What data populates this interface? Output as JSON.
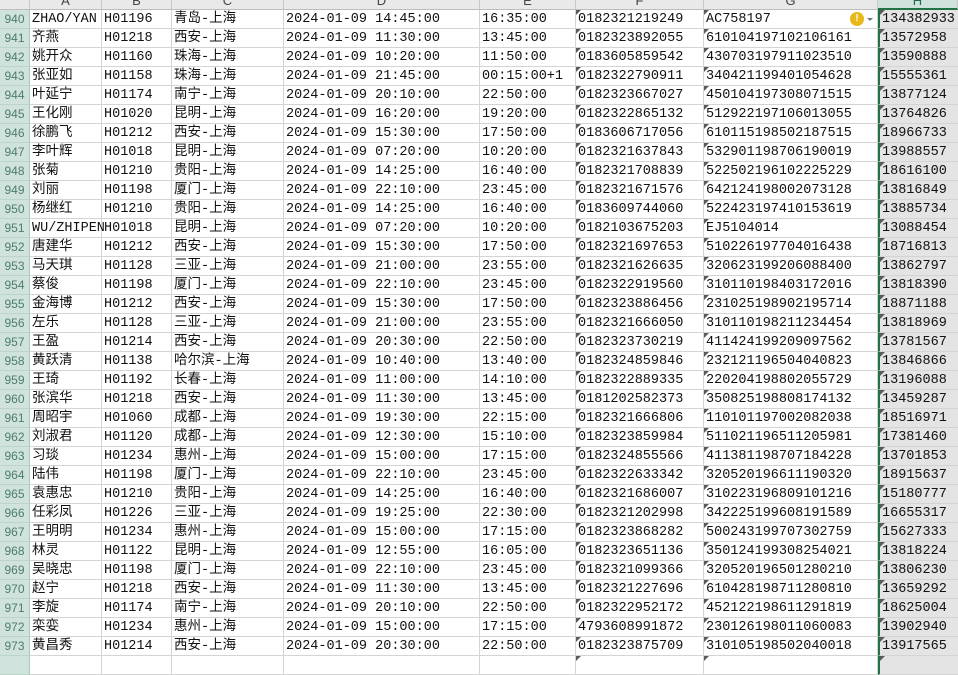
{
  "columns": [
    "A",
    "B",
    "C",
    "D",
    "E",
    "F",
    "G",
    "H"
  ],
  "selected_column": "H",
  "warning_icon": {
    "name": "error-check-icon",
    "color": "#e8b718",
    "glyph": "!"
  },
  "rows": [
    {
      "n": "940",
      "a": "ZHAO/YAN",
      "b": "H01196",
      "c": "青岛-上海",
      "d": "2024-01-09 14:45:00",
      "e": "16:35:00",
      "f": "0182321219249",
      "g": "AC758197",
      "h": "134382933"
    },
    {
      "n": "941",
      "a": "齐燕",
      "b": "H01218",
      "c": "西安-上海",
      "d": "2024-01-09 11:30:00",
      "e": "13:45:00",
      "f": "0182323892055",
      "g": "610104197102106161",
      "h": "13572958"
    },
    {
      "n": "942",
      "a": "姚开众",
      "b": "H01160",
      "c": "珠海-上海",
      "d": "2024-01-09 10:20:00",
      "e": "11:50:00",
      "f": "0183605859542",
      "g": "430703197911023510",
      "h": "13590888"
    },
    {
      "n": "943",
      "a": "张亚如",
      "b": "H01158",
      "c": "珠海-上海",
      "d": "2024-01-09 21:45:00",
      "e": "00:15:00+1",
      "f": "0182322790911",
      "g": "340421199401054628",
      "h": "15555361"
    },
    {
      "n": "944",
      "a": "叶延宁",
      "b": "H01174",
      "c": "南宁-上海",
      "d": "2024-01-09 20:10:00",
      "e": "22:50:00",
      "f": "0182323667027",
      "g": "450104197308071515",
      "h": "13877124"
    },
    {
      "n": "945",
      "a": "王化刚",
      "b": "H01020",
      "c": "昆明-上海",
      "d": "2024-01-09 16:20:00",
      "e": "19:20:00",
      "f": "0182322865132",
      "g": "512922197106013055",
      "h": "13764826"
    },
    {
      "n": "946",
      "a": "徐鹏飞",
      "b": "H01212",
      "c": "西安-上海",
      "d": "2024-01-09 15:30:00",
      "e": "17:50:00",
      "f": "0183606717056",
      "g": "610115198502187515",
      "h": "18966733"
    },
    {
      "n": "947",
      "a": "李叶辉",
      "b": "H01018",
      "c": "昆明-上海",
      "d": "2024-01-09 07:20:00",
      "e": "10:20:00",
      "f": "0182321637843",
      "g": "532901198706190019",
      "h": "13988557"
    },
    {
      "n": "948",
      "a": "张菊",
      "b": "H01210",
      "c": "贵阳-上海",
      "d": "2024-01-09 14:25:00",
      "e": "16:40:00",
      "f": "0182321708839",
      "g": "522502196102225229",
      "h": "18616100"
    },
    {
      "n": "949",
      "a": "刘丽",
      "b": "H01198",
      "c": "厦门-上海",
      "d": "2024-01-09 22:10:00",
      "e": "23:45:00",
      "f": "0182321671576",
      "g": "642124198002073128",
      "h": "13816849"
    },
    {
      "n": "950",
      "a": "杨继红",
      "b": "H01210",
      "c": "贵阳-上海",
      "d": "2024-01-09 14:25:00",
      "e": "16:40:00",
      "f": "0183609744060",
      "g": "522423197410153619",
      "h": "13885734"
    },
    {
      "n": "951",
      "a": "WU/ZHIPEN",
      "b": "H01018",
      "c": "昆明-上海",
      "d": "2024-01-09 07:20:00",
      "e": "10:20:00",
      "f": "0182103675203",
      "g": "EJ5104014",
      "h": "13088454"
    },
    {
      "n": "952",
      "a": "唐建华",
      "b": "H01212",
      "c": "西安-上海",
      "d": "2024-01-09 15:30:00",
      "e": "17:50:00",
      "f": "0182321697653",
      "g": "510226197704016438",
      "h": "18716813"
    },
    {
      "n": "953",
      "a": "马天琪",
      "b": "H01128",
      "c": "三亚-上海",
      "d": "2024-01-09 21:00:00",
      "e": "23:55:00",
      "f": "0182321626635",
      "g": "320623199206088400",
      "h": "13862797"
    },
    {
      "n": "954",
      "a": "蔡俊",
      "b": "H01198",
      "c": "厦门-上海",
      "d": "2024-01-09 22:10:00",
      "e": "23:45:00",
      "f": "0182322919560",
      "g": "310110198403172016",
      "h": "13818390"
    },
    {
      "n": "955",
      "a": "金海博",
      "b": "H01212",
      "c": "西安-上海",
      "d": "2024-01-09 15:30:00",
      "e": "17:50:00",
      "f": "0182323886456",
      "g": "231025198902195714",
      "h": "18871188"
    },
    {
      "n": "956",
      "a": "左乐",
      "b": "H01128",
      "c": "三亚-上海",
      "d": "2024-01-09 21:00:00",
      "e": "23:55:00",
      "f": "0182321666050",
      "g": "310110198211234454",
      "h": "13818969"
    },
    {
      "n": "957",
      "a": "王盈",
      "b": "H01214",
      "c": "西安-上海",
      "d": "2024-01-09 20:30:00",
      "e": "22:50:00",
      "f": "0182323730219",
      "g": "411424199209097562",
      "h": "13781567"
    },
    {
      "n": "958",
      "a": "黄跃清",
      "b": "H01138",
      "c": "哈尔滨-上海",
      "d": "2024-01-09 10:40:00",
      "e": "13:40:00",
      "f": "0182324859846",
      "g": "232121196504040823",
      "h": "13846866"
    },
    {
      "n": "959",
      "a": "王琦",
      "b": "H01192",
      "c": "长春-上海",
      "d": "2024-01-09 11:00:00",
      "e": "14:10:00",
      "f": "0182322889335",
      "g": "220204198802055729",
      "h": "13196088"
    },
    {
      "n": "960",
      "a": "张滨华",
      "b": "H01218",
      "c": "西安-上海",
      "d": "2024-01-09 11:30:00",
      "e": "13:45:00",
      "f": "0181202582373",
      "g": "350825198808174132",
      "h": "13459287"
    },
    {
      "n": "961",
      "a": "周昭宇",
      "b": "H01060",
      "c": "成都-上海",
      "d": "2024-01-09 19:30:00",
      "e": "22:15:00",
      "f": "0182321666806",
      "g": "110101197002082038",
      "h": "18516971"
    },
    {
      "n": "962",
      "a": "刘淑君",
      "b": "H01120",
      "c": "成都-上海",
      "d": "2024-01-09 12:30:00",
      "e": "15:10:00",
      "f": "0182323859984",
      "g": "511021196511205981",
      "h": "17381460"
    },
    {
      "n": "963",
      "a": "习琰",
      "b": "H01234",
      "c": "惠州-上海",
      "d": "2024-01-09 15:00:00",
      "e": "17:15:00",
      "f": "0182324855566",
      "g": "411381198707184228",
      "h": "13701853"
    },
    {
      "n": "964",
      "a": "陆伟",
      "b": "H01198",
      "c": "厦门-上海",
      "d": "2024-01-09 22:10:00",
      "e": "23:45:00",
      "f": "0182322633342",
      "g": "320520196611190320",
      "h": "18915637"
    },
    {
      "n": "965",
      "a": "袁惠忠",
      "b": "H01210",
      "c": "贵阳-上海",
      "d": "2024-01-09 14:25:00",
      "e": "16:40:00",
      "f": "0182321686007",
      "g": "310223196809101216",
      "h": "15180777"
    },
    {
      "n": "966",
      "a": "任彩凤",
      "b": "H01226",
      "c": "三亚-上海",
      "d": "2024-01-09 19:25:00",
      "e": "22:30:00",
      "f": "0182321202998",
      "g": "342225199608191589",
      "h": "16655317"
    },
    {
      "n": "967",
      "a": "王明明",
      "b": "H01234",
      "c": "惠州-上海",
      "d": "2024-01-09 15:00:00",
      "e": "17:15:00",
      "f": "0182323868282",
      "g": "500243199707302759",
      "h": "15627333"
    },
    {
      "n": "968",
      "a": "林灵",
      "b": "H01122",
      "c": "昆明-上海",
      "d": "2024-01-09 12:55:00",
      "e": "16:05:00",
      "f": "0182323651136",
      "g": "350124199308254021",
      "h": "13818224"
    },
    {
      "n": "969",
      "a": "吴晓忠",
      "b": "H01198",
      "c": "厦门-上海",
      "d": "2024-01-09 22:10:00",
      "e": "23:45:00",
      "f": "0182321099366",
      "g": "320520196501280210",
      "h": "13806230"
    },
    {
      "n": "970",
      "a": "赵宁",
      "b": "H01218",
      "c": "西安-上海",
      "d": "2024-01-09 11:30:00",
      "e": "13:45:00",
      "f": "0182321227696",
      "g": "610428198711280810",
      "h": "13659292"
    },
    {
      "n": "971",
      "a": "李旋",
      "b": "H01174",
      "c": "南宁-上海",
      "d": "2024-01-09 20:10:00",
      "e": "22:50:00",
      "f": "0182322952172",
      "g": "452122198611291819",
      "h": "18625004"
    },
    {
      "n": "972",
      "a": "栾娈",
      "b": "H01234",
      "c": "惠州-上海",
      "d": "2024-01-09 15:00:00",
      "e": "17:15:00",
      "f": "4793608991872",
      "g": "230126198011060083",
      "h": "13902940"
    },
    {
      "n": "973",
      "a": "黄昌秀",
      "b": "H01214",
      "c": "西安-上海",
      "d": "2024-01-09 20:30:00",
      "e": "22:50:00",
      "f": "0182323875709",
      "g": "310105198502040018",
      "h": "13917565"
    }
  ]
}
